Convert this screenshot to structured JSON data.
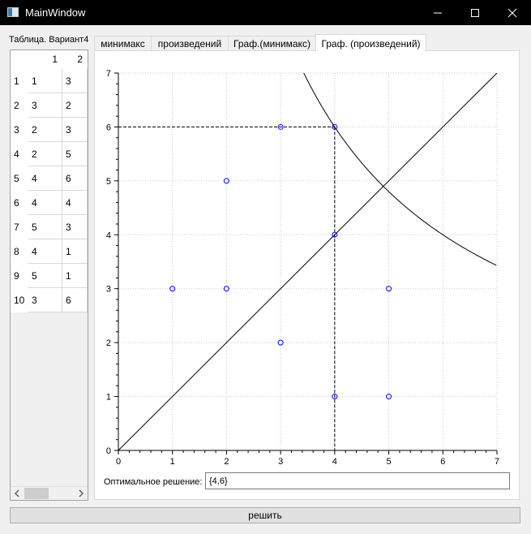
{
  "window": {
    "title": "MainWindow",
    "icon": "window-app-icon",
    "controls": [
      "minimize-icon",
      "maximize-icon",
      "close-icon"
    ]
  },
  "left_panel": {
    "label": "Таблица. Вариант4",
    "column_headers": [
      "1",
      "2"
    ],
    "row_headers": [
      "1",
      "2",
      "3",
      "4",
      "5",
      "6",
      "7",
      "8",
      "9",
      "10"
    ],
    "rows": [
      [
        "1",
        "3"
      ],
      [
        "3",
        "2"
      ],
      [
        "2",
        "3"
      ],
      [
        "2",
        "5"
      ],
      [
        "4",
        "6"
      ],
      [
        "4",
        "4"
      ],
      [
        "5",
        "3"
      ],
      [
        "4",
        "1"
      ],
      [
        "5",
        "1"
      ],
      [
        "3",
        "6"
      ]
    ]
  },
  "tabs": [
    {
      "label": "минимакс",
      "active": false
    },
    {
      "label": "произведений",
      "active": false
    },
    {
      "label": "Граф.(минимакс)",
      "active": false
    },
    {
      "label": "Граф. (произведений)",
      "active": true
    }
  ],
  "chart_data": {
    "type": "scatter",
    "xlim": [
      0,
      7
    ],
    "ylim": [
      0,
      7
    ],
    "x_ticks": [
      "0",
      "1",
      "2",
      "3",
      "4",
      "5",
      "6",
      "7"
    ],
    "y_ticks": [
      "0",
      "1",
      "2",
      "3",
      "4",
      "5",
      "6",
      "7"
    ],
    "grid": true,
    "points": [
      [
        1,
        3
      ],
      [
        3,
        2
      ],
      [
        2,
        3
      ],
      [
        2,
        5
      ],
      [
        4,
        6
      ],
      [
        4,
        4
      ],
      [
        5,
        3
      ],
      [
        4,
        1
      ],
      [
        5,
        1
      ],
      [
        3,
        6
      ]
    ],
    "lines": [
      {
        "kind": "line",
        "equation": "y = x",
        "style": "solid"
      },
      {
        "kind": "curve",
        "equation": "y = 24 / x",
        "style": "solid"
      }
    ],
    "optimum_guides": {
      "x": 4,
      "y": 6,
      "style": "dashed"
    },
    "colors": {
      "points": "#0000ff",
      "lines": "#000000",
      "grid": "#c8c8c8"
    }
  },
  "result": {
    "label": "Оптимальное решение:",
    "value": "{4,6}"
  },
  "solve_button": {
    "label": "решить"
  }
}
